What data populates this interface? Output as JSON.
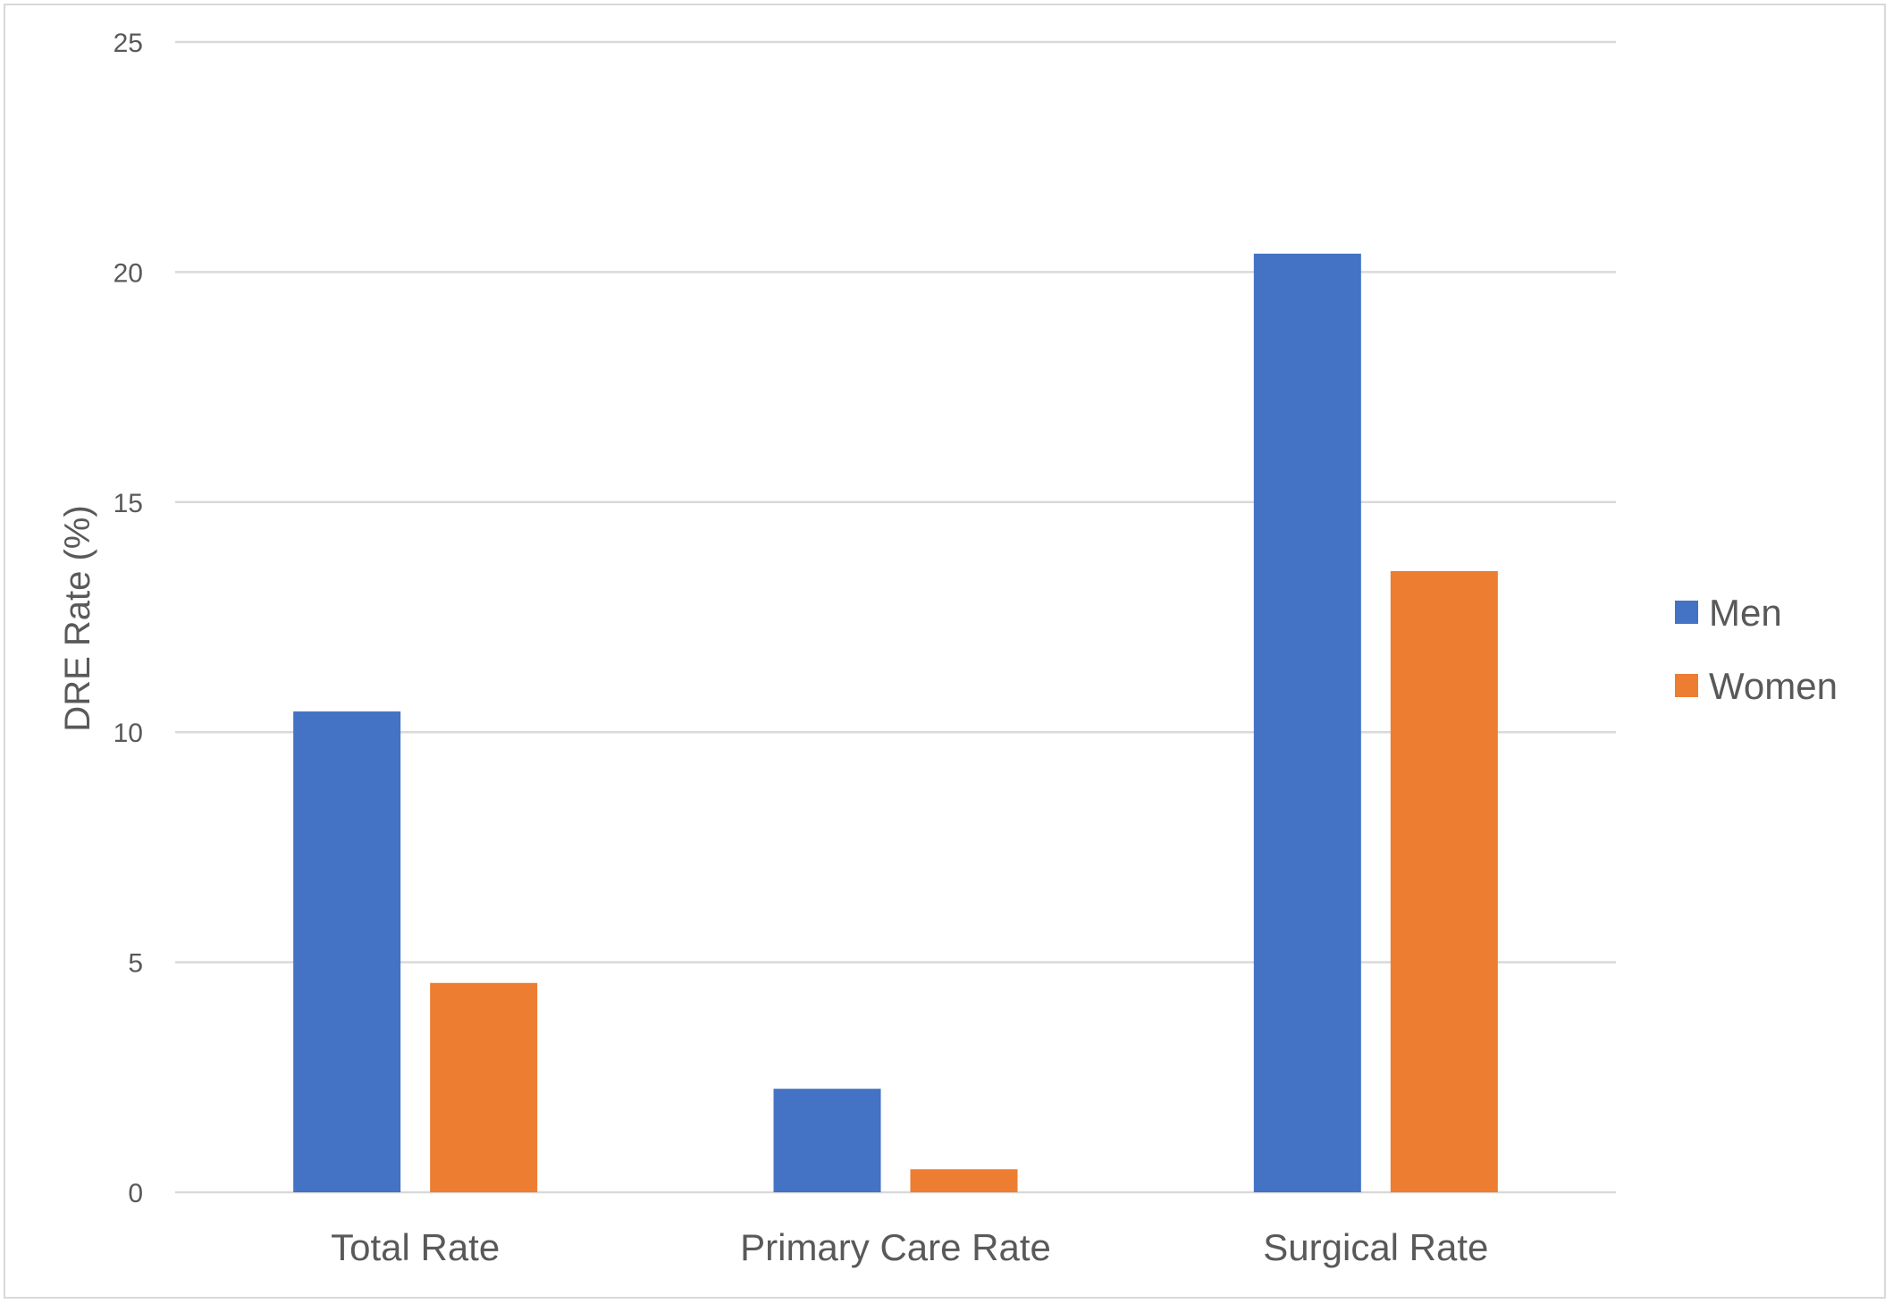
{
  "chart_data": {
    "type": "bar",
    "title": "",
    "xlabel": "",
    "ylabel": "DRE Rate (%)",
    "ylim": [
      0,
      25
    ],
    "yticks": [
      0,
      5,
      10,
      15,
      20,
      25
    ],
    "grid": true,
    "legend_position": "right",
    "categories": [
      "Total Rate",
      "Primary Care Rate",
      "Surgical Rate"
    ],
    "series": [
      {
        "name": "Men",
        "color": "#4472C4",
        "values": [
          10.45,
          2.25,
          20.4
        ]
      },
      {
        "name": "Women",
        "color": "#ED7D31",
        "values": [
          4.55,
          0.5,
          13.5
        ]
      }
    ]
  }
}
